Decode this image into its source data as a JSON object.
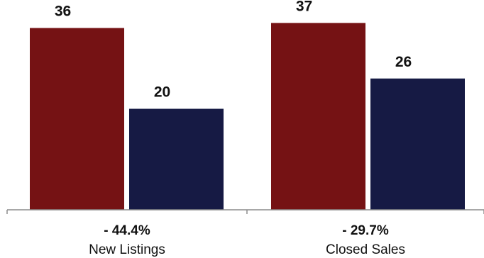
{
  "colors": {
    "series_a": "#751214",
    "series_b": "#161a44",
    "axis": "#8c8c8c"
  },
  "chart_data": {
    "type": "bar",
    "categories": [
      "New Listings",
      "Closed Sales"
    ],
    "series": [
      {
        "values": [
          36,
          37
        ]
      },
      {
        "values": [
          20,
          26
        ]
      }
    ],
    "value_labels": [
      [
        "36",
        "37"
      ],
      [
        "20",
        "26"
      ]
    ],
    "change_labels": [
      "- 44.4%",
      "- 29.7%"
    ],
    "ylim": [
      0,
      40
    ],
    "grid": false,
    "legend": "none"
  }
}
